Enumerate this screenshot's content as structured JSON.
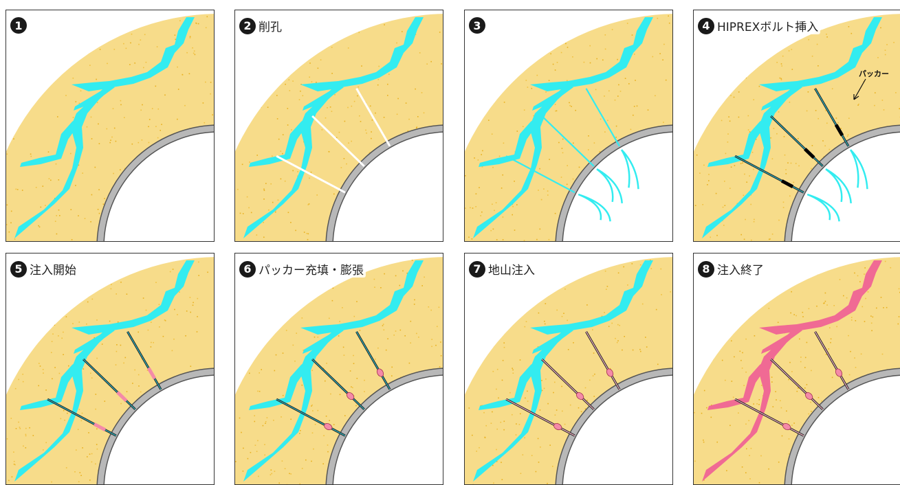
{
  "panels": [
    {
      "num": "1",
      "label": "",
      "drill": false,
      "tubes": false,
      "crack": "#33ecf0",
      "injection": false,
      "packer": "none"
    },
    {
      "num": "2",
      "label": "削孔",
      "drill": true,
      "tubes": false,
      "crack": "#33ecf0",
      "injection": false,
      "packer": "none"
    },
    {
      "num": "3",
      "label": "",
      "drill": false,
      "tubes": false,
      "crack": "#33ecf0",
      "injection": true,
      "packer": "none",
      "cyan_holes": true
    },
    {
      "num": "4",
      "label": "HIPREXボルト挿入",
      "drill": false,
      "tubes": true,
      "crack": "#33ecf0",
      "injection": true,
      "packer": "black",
      "callout": "パッカー"
    },
    {
      "num": "5",
      "label": "注入開始",
      "drill": false,
      "tubes": true,
      "crack": "#33ecf0",
      "injection": false,
      "packer": "pink-bar"
    },
    {
      "num": "6",
      "label": "パッカー充填・膨張",
      "drill": false,
      "tubes": true,
      "crack": "#33ecf0",
      "injection": false,
      "packer": "pink-bulb"
    },
    {
      "num": "7",
      "label": "地山注入",
      "drill": false,
      "tubes": true,
      "crack": "#33ecf0",
      "injection": false,
      "packer": "pink-bulb",
      "tube_style": "pink"
    },
    {
      "num": "8",
      "label": "注入終了",
      "drill": false,
      "tubes": true,
      "crack": "#f06a94",
      "injection": false,
      "packer": "pink-bulb",
      "tube_style": "pink"
    }
  ],
  "colors": {
    "rock": "#f7dc8a",
    "speckle": "#e8b020",
    "lining": "#b8b8b8",
    "crack_water": "#33ecf0",
    "crack_grout": "#f06a94",
    "packer_pink": "#f48aa8"
  }
}
